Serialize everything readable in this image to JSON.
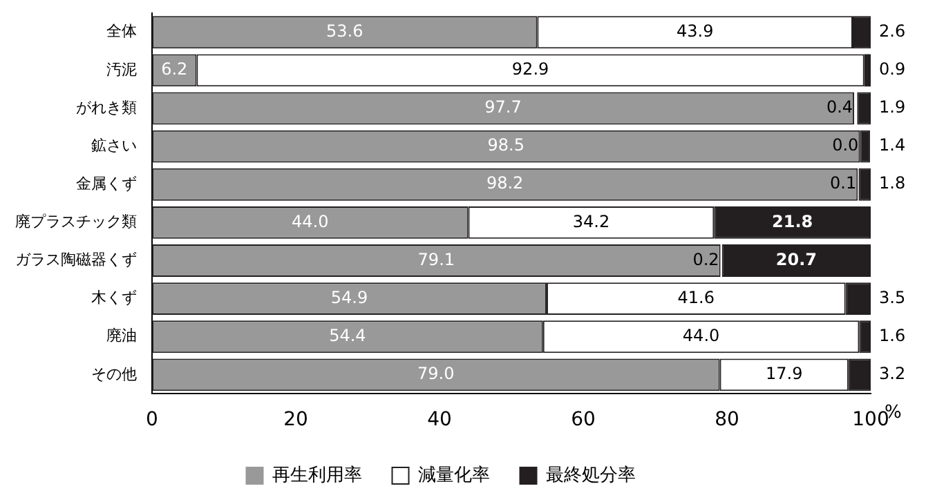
{
  "chart_data": {
    "type": "bar",
    "orientation": "horizontal",
    "stacked": true,
    "legend": "bottom",
    "xlabel": "%",
    "categories": [
      "全体",
      "汚泥",
      "がれき類",
      "鉱さい",
      "金属くず",
      "廃プラスチック類",
      "ガラス陶磁器くず",
      "木くず",
      "廃油",
      "その他"
    ],
    "xlim": [
      0,
      100
    ],
    "xticks": [
      0,
      20,
      40,
      60,
      80,
      100
    ],
    "series": [
      {
        "name": "再生利用率",
        "color": "#999999",
        "values": [
          53.6,
          6.2,
          97.7,
          98.5,
          98.2,
          44.0,
          79.1,
          54.9,
          54.4,
          79.0
        ],
        "value_labels": [
          "53.6",
          "6.2",
          "97.7",
          "98.5",
          "98.2",
          "44.0",
          "79.1",
          "54.9",
          "54.4",
          "79.0"
        ]
      },
      {
        "name": "減量化率",
        "color": "#ffffff",
        "values": [
          43.9,
          92.9,
          0.4,
          0.0,
          0.1,
          34.2,
          0.2,
          41.6,
          44.0,
          17.9
        ],
        "value_labels": [
          "43.9",
          "92.9",
          "0.4",
          "0.0",
          "0.1",
          "34.2",
          "0.2",
          "41.6",
          "44.0",
          "17.9"
        ]
      },
      {
        "name": "最終処分率",
        "color": "#231f20",
        "values": [
          2.6,
          0.9,
          1.9,
          1.4,
          1.8,
          21.8,
          20.7,
          3.5,
          1.6,
          3.2
        ],
        "value_labels": [
          "2.6",
          "0.9",
          "1.9",
          "1.4",
          "1.8",
          "21.8",
          "20.7",
          "3.5",
          "1.6",
          "3.2"
        ]
      }
    ]
  }
}
